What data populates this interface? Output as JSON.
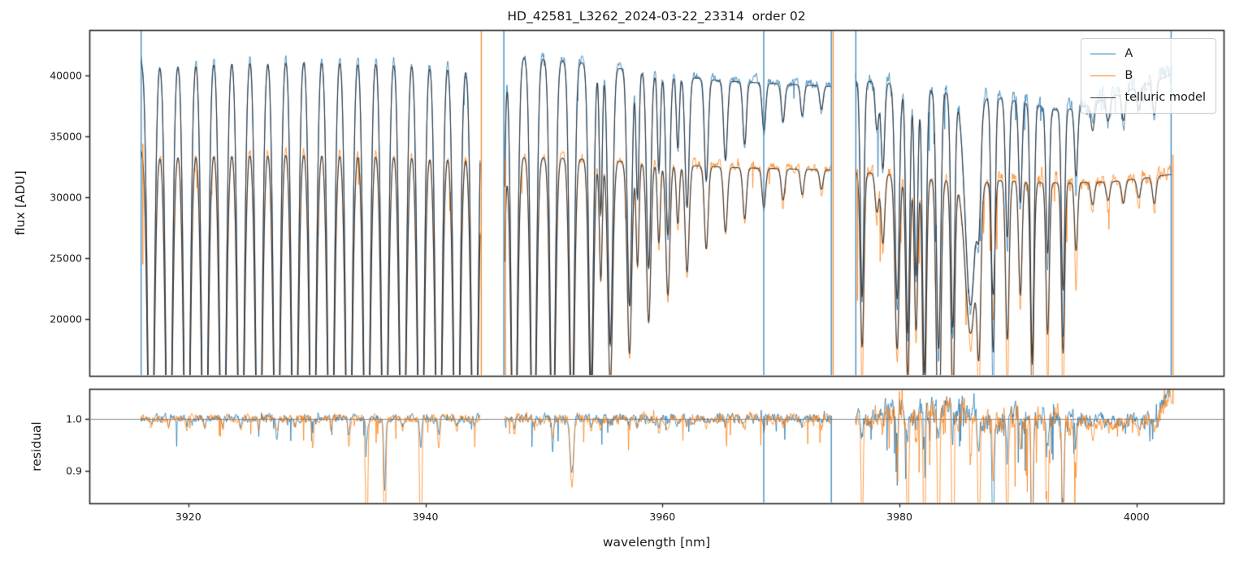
{
  "figure": {
    "background": "#ffffff",
    "spine_color": "#262626",
    "text_color": "#1a1a1a",
    "unity_line_color": "#888888"
  },
  "chart_data": {
    "type": "line",
    "title": "HD_42581_L3262_2024-03-22_23314  order 02",
    "xlabel": "wavelength [nm]",
    "xlim": [
      3911.65,
      4007.35
    ],
    "xticks": [
      3920,
      3940,
      3960,
      3980,
      4000
    ],
    "panels": [
      {
        "name": "spectrum",
        "ylabel": "flux [ADU]",
        "ylim": [
          15330,
          43730
        ],
        "yticks": [
          20000,
          25000,
          30000,
          35000,
          40000
        ],
        "legend": {
          "location": "upper right",
          "entries": [
            {
              "label": "A",
              "color": "#1f77b4"
            },
            {
              "label": "B",
              "color": "#ff7f0e"
            },
            {
              "label": "telluric model",
              "color": "#3a3a42"
            }
          ]
        }
      },
      {
        "name": "residual",
        "ylabel": "residual",
        "ylim": [
          0.838,
          1.0566
        ],
        "yticks": [
          0.9,
          1.0
        ],
        "unity_line": 1.0
      }
    ],
    "series": [
      {
        "name": "A",
        "color": "#1f77b4",
        "alpha": 0.85,
        "lw": 0.9
      },
      {
        "name": "B",
        "color": "#ff7f0e",
        "alpha": 0.85,
        "lw": 0.9
      },
      {
        "name": "telluric model",
        "color": "#30353d",
        "alpha": 0.92,
        "lw": 1.15
      }
    ],
    "segments": [
      {
        "range": [
          3916.0,
          3944.65
        ],
        "contA": [
          [
            3916.0,
            41600
          ],
          [
            3918,
            42000
          ],
          [
            3924,
            42300
          ],
          [
            3930,
            42400
          ],
          [
            3936,
            42250
          ],
          [
            3941,
            41900
          ],
          [
            3944.65,
            41400
          ]
        ],
        "contB": [
          [
            3916.0,
            34150
          ],
          [
            3920,
            34400
          ],
          [
            3928,
            34550
          ],
          [
            3936,
            34400
          ],
          [
            3944.65,
            34000
          ]
        ],
        "lines": [
          {
            "c": 3916.84,
            "d": 0.97,
            "s": 0.26
          },
          {
            "c": 3918.36,
            "d": 0.97,
            "s": 0.26
          },
          {
            "c": 3919.88,
            "d": 0.97,
            "s": 0.26
          },
          {
            "c": 3921.39,
            "d": 0.97,
            "s": 0.26
          },
          {
            "c": 3922.91,
            "d": 0.97,
            "s": 0.26
          },
          {
            "c": 3924.43,
            "d": 0.97,
            "s": 0.26
          },
          {
            "c": 3925.95,
            "d": 0.97,
            "s": 0.26
          },
          {
            "c": 3927.46,
            "d": 0.97,
            "s": 0.26,
            "mA": 0.04,
            "mB": 0.03
          },
          {
            "c": 3928.98,
            "d": 0.97,
            "s": 0.26
          },
          {
            "c": 3930.5,
            "d": 0.97,
            "s": 0.26,
            "mB": 0.05
          },
          {
            "c": 3932.02,
            "d": 0.97,
            "s": 0.26
          },
          {
            "c": 3933.54,
            "d": 0.97,
            "s": 0.26,
            "mA": 0.03,
            "mB": 0.05
          },
          {
            "c": 3935.05,
            "d": 0.97,
            "s": 0.26,
            "mA": 0.05,
            "mB": 0.3
          },
          {
            "c": 3936.57,
            "d": 0.97,
            "s": 0.26,
            "mA": 0.13,
            "mB": 0.3
          },
          {
            "c": 3938.09,
            "d": 0.97,
            "s": 0.26
          },
          {
            "c": 3939.61,
            "d": 0.97,
            "s": 0.26,
            "mA": 0.05,
            "mB": 0.33
          },
          {
            "c": 3941.12,
            "d": 0.97,
            "s": 0.26,
            "mA": 0.03,
            "mB": 0.06
          },
          {
            "c": 3942.64,
            "d": 0.97,
            "s": 0.26
          },
          {
            "c": 3944.16,
            "d": 0.97,
            "s": 0.26
          }
        ]
      },
      {
        "range": [
          3946.7,
          3974.2
        ],
        "contA": [
          [
            3946.7,
            42050
          ],
          [
            3949,
            41750
          ],
          [
            3953,
            41300
          ],
          [
            3957,
            40700
          ],
          [
            3961,
            40200
          ],
          [
            3965,
            39750
          ],
          [
            3969,
            39550
          ],
          [
            3974.2,
            39300
          ]
        ],
        "contB": [
          [
            3946.7,
            33650
          ],
          [
            3951,
            33450
          ],
          [
            3956,
            33150
          ],
          [
            3961,
            32850
          ],
          [
            3966,
            32600
          ],
          [
            3970,
            32500
          ],
          [
            3974.2,
            32400
          ]
        ],
        "lines": [
          {
            "c": 3946.4,
            "d": 0.8,
            "s": 0.2
          },
          {
            "c": 3947.5,
            "d": 0.93,
            "s": 0.24,
            "mA": 0.02,
            "mB": 0.03
          },
          {
            "c": 3949.12,
            "d": 0.88,
            "s": 0.23
          },
          {
            "c": 3950.74,
            "d": 0.8,
            "s": 0.22,
            "mA": 0.06,
            "mB": 0.04
          },
          {
            "c": 3952.36,
            "d": 0.72,
            "s": 0.21,
            "mA": 0.11,
            "mB": 0.13,
            "sm": 0.14
          },
          {
            "c": 3953.98,
            "d": 0.64,
            "s": 0.2
          },
          {
            "c": 3954.8,
            "d": 0.3,
            "s": 0.12
          },
          {
            "c": 3955.6,
            "d": 0.56,
            "s": 0.2
          },
          {
            "c": 3957.22,
            "d": 0.48,
            "s": 0.19
          },
          {
            "c": 3957.9,
            "d": 0.26,
            "s": 0.12
          },
          {
            "c": 3958.84,
            "d": 0.4,
            "s": 0.18
          },
          {
            "c": 3959.7,
            "d": 0.2,
            "s": 0.12
          },
          {
            "c": 3960.46,
            "d": 0.33,
            "s": 0.17
          },
          {
            "c": 3961.3,
            "d": 0.15,
            "s": 0.12
          },
          {
            "c": 3962.08,
            "d": 0.27,
            "s": 0.17
          },
          {
            "c": 3963.7,
            "d": 0.21,
            "s": 0.16
          },
          {
            "c": 3965.32,
            "d": 0.165,
            "s": 0.16
          },
          {
            "c": 3966.94,
            "d": 0.13,
            "s": 0.15
          },
          {
            "c": 3968.56,
            "d": 0.1,
            "s": 0.15
          },
          {
            "c": 3970.18,
            "d": 0.08,
            "s": 0.15
          },
          {
            "c": 3971.8,
            "d": 0.065,
            "s": 0.14
          },
          {
            "c": 3973.42,
            "d": 0.05,
            "s": 0.14
          }
        ]
      },
      {
        "range": [
          3976.3,
          4003.0
        ],
        "contA": [
          [
            3976.3,
            39800
          ],
          [
            3979,
            39600
          ],
          [
            3982,
            39100
          ],
          [
            3985,
            38700
          ],
          [
            3988,
            38400
          ],
          [
            3990.5,
            38000
          ],
          [
            3993,
            37400
          ],
          [
            3995,
            37450
          ],
          [
            3997.5,
            38300
          ],
          [
            3999.5,
            39000
          ],
          [
            4001.5,
            39700
          ],
          [
            4003.0,
            40300
          ]
        ],
        "contB": [
          [
            3976.3,
            32250
          ],
          [
            3979,
            32050
          ],
          [
            3982,
            31750
          ],
          [
            3985,
            31500
          ],
          [
            3989,
            31550
          ],
          [
            3992,
            31350
          ],
          [
            3995,
            31350
          ],
          [
            3998,
            31450
          ],
          [
            4000.5,
            31700
          ],
          [
            4003.0,
            32050
          ]
        ],
        "lines": [
          {
            "c": 3976.85,
            "d": 0.45,
            "s": 0.15,
            "mA": 0.03,
            "mB": 0.22
          },
          {
            "c": 3978.1,
            "d": 0.1,
            "s": 0.15
          },
          {
            "c": 3978.6,
            "d": 0.18,
            "s": 0.15,
            "mA": 0.02,
            "mB": 0.03
          },
          {
            "c": 3979.8,
            "d": 0.45,
            "s": 0.18,
            "mA": 0.03,
            "mB": 0.06
          },
          {
            "c": 3980.7,
            "d": 0.52,
            "s": 0.16,
            "mA": 0.05,
            "mB": 0.28
          },
          {
            "c": 3981.4,
            "d": 0.4,
            "s": 0.14,
            "mA": 0.03,
            "mB": 0.06
          },
          {
            "c": 3982.1,
            "d": 0.6,
            "s": 0.16,
            "mA": 0.04,
            "mB": 0.33
          },
          {
            "c": 3983.3,
            "d": 0.55,
            "dB": 0.75,
            "s": 0.18,
            "mA": 0.06,
            "mB": 0.38
          },
          {
            "c": 3984.5,
            "d": 0.5,
            "dB": 0.56,
            "s": 0.16,
            "mA": 0.05,
            "mB": 0.33
          },
          {
            "c": 3986.0,
            "d": 0.45,
            "dB": 0.4,
            "s": 0.45,
            "mA": 0.04,
            "mB": 0.08
          },
          {
            "c": 3986.7,
            "d": 0.2,
            "dB": 0.4,
            "s": 0.16,
            "mA": 0.03,
            "mB": 0.28
          },
          {
            "c": 3987.9,
            "d": 0.55,
            "dB": 0.3,
            "s": 0.15,
            "mA": 0.24,
            "mB": 0.1
          },
          {
            "c": 3989.1,
            "d": 0.3,
            "dB": 0.42,
            "s": 0.15,
            "mA": 0.04,
            "mB": 0.28
          },
          {
            "c": 3990.2,
            "d": 0.22,
            "dB": 0.3,
            "s": 0.14,
            "mA": 0.03,
            "mB": 0.06
          },
          {
            "c": 3991.2,
            "d": 0.55,
            "dB": 0.48,
            "s": 0.15,
            "mA": 0.28,
            "mB": 0.33
          },
          {
            "c": 3992.5,
            "d": 0.32,
            "dB": 0.4,
            "s": 0.14,
            "mA": 0.04,
            "mB": 0.24
          },
          {
            "c": 3993.8,
            "d": 0.4,
            "dB": 0.45,
            "s": 0.14,
            "mA": 0.18,
            "mB": 0.28
          },
          {
            "c": 3994.9,
            "d": 0.15,
            "dB": 0.18,
            "s": 0.13,
            "mA": 0.05,
            "mB": 0.12
          },
          {
            "c": 3996.3,
            "d": 0.06,
            "s": 0.15
          },
          {
            "c": 3997.6,
            "d": 0.05,
            "s": 0.15
          },
          {
            "c": 3998.9,
            "d": 0.06,
            "s": 0.15
          },
          {
            "c": 4000.2,
            "d": 0.05,
            "s": 0.15
          },
          {
            "c": 4001.5,
            "d": 0.07,
            "s": 0.15
          }
        ]
      }
    ],
    "noise": {
      "A": [
        {
          "amp": 0.008,
          "p": 0.012,
          "neg": 0.05,
          "pos": 0.015
        },
        {
          "amp": 0.0075,
          "p": 0.012,
          "neg": 0.05,
          "pos": 0.015
        },
        {
          "amp": 0.013,
          "p": 0.02,
          "neg": 0.07,
          "pos": 0.02
        }
      ],
      "B": [
        {
          "amp": 0.0095,
          "p": 0.02,
          "neg": 0.09,
          "pos": 0.02
        },
        {
          "amp": 0.009,
          "p": 0.02,
          "neg": 0.07,
          "pos": 0.02
        },
        {
          "amp": 0.015,
          "p": 0.025,
          "neg": 0.08,
          "pos": 0.025
        }
      ]
    },
    "noise_regions": [
      {
        "series": "A",
        "from": 3995.2,
        "to": 4003.0,
        "amp": 0.018,
        "p": 0.02,
        "neg": 0.05,
        "pos": 0.03
      },
      {
        "series": "A",
        "from": 3978.0,
        "to": 3995.0,
        "p": 0.035,
        "neg": 0.16
      },
      {
        "series": "B",
        "from": 3978.0,
        "to": 3995.0,
        "p": 0.05,
        "neg": 0.2
      }
    ],
    "residual_noise": {
      "segments": [
        {
          "amp": 0.006,
          "p": 0.03,
          "neg": 0.05,
          "pos": 0.012
        },
        {
          "amp": 0.0075,
          "p": 0.025,
          "neg": 0.05,
          "pos": 0.015
        },
        {
          "amp": 0.013,
          "p": 0.03,
          "neg": 0.06,
          "pos": 0.02
        }
      ],
      "regions": [
        {
          "from": 3978.4,
          "to": 3986.5,
          "amp": 0.02,
          "bias0": 0.012,
          "bias1": 0.012,
          "p": 0.06,
          "neg": 0.12,
          "pos": 0.05
        },
        {
          "from": 3986.5,
          "to": 3995.2,
          "amp": 0.019,
          "bias0": -0.004,
          "bias1": -0.004,
          "p": 0.07,
          "neg": 0.13,
          "pos": 0.02
        },
        {
          "from": 3995.2,
          "to": 4001.6,
          "amp": 0.011,
          "bias0": -0.008,
          "bias1": -0.005,
          "p": 0.02,
          "neg": 0.04,
          "pos": 0.01
        },
        {
          "from": 4001.6,
          "to": 4003.0,
          "amp": 0.016,
          "bias0": 0.0,
          "bias1": 0.055,
          "p": 0.04,
          "neg": 0.03,
          "pos": 0.04
        }
      ]
    },
    "vlines": [
      {
        "panel": "spectrum",
        "x": 3916.02,
        "series": "A",
        "y": [
          "max",
          "min"
        ]
      },
      {
        "panel": "spectrum",
        "x": 3916.16,
        "series": "B",
        "y": [
          34400,
          24500
        ]
      },
      {
        "panel": "spectrum",
        "x": 3944.72,
        "series": "B",
        "y": [
          "max",
          "min"
        ]
      },
      {
        "panel": "spectrum",
        "x": 3946.62,
        "series": "A",
        "y": [
          "max",
          "min"
        ]
      },
      {
        "panel": "spectrum",
        "x": 3946.76,
        "series": "B",
        "y": [
          33200,
          "min"
        ]
      },
      {
        "panel": "spectrum",
        "x": 3968.55,
        "series": "A",
        "y": [
          "max",
          "min"
        ]
      },
      {
        "panel": "spectrum",
        "x": 3974.25,
        "series": "A",
        "y": [
          "max",
          "min"
        ]
      },
      {
        "panel": "spectrum",
        "x": 3974.4,
        "series": "B",
        "y": [
          "max",
          "min"
        ]
      },
      {
        "panel": "spectrum",
        "x": 3976.32,
        "series": "A",
        "y": [
          "max",
          "min"
        ]
      },
      {
        "panel": "spectrum",
        "x": 3976.46,
        "series": "B",
        "y": [
          32300,
          21500
        ]
      },
      {
        "panel": "spectrum",
        "x": 4002.92,
        "series": "A",
        "y": [
          "max",
          "min"
        ]
      },
      {
        "panel": "spectrum",
        "x": 4003.08,
        "series": "B",
        "y": [
          33500,
          "min"
        ]
      },
      {
        "panel": "residual",
        "x": 3968.55,
        "series": "A",
        "y": [
          1.005,
          "min"
        ]
      },
      {
        "panel": "residual",
        "x": 3974.25,
        "series": "A",
        "y": [
          1.005,
          "min"
        ]
      },
      {
        "panel": "residual",
        "x": 4003.08,
        "series": "B",
        "y": [
          "max",
          1.028
        ]
      }
    ]
  }
}
